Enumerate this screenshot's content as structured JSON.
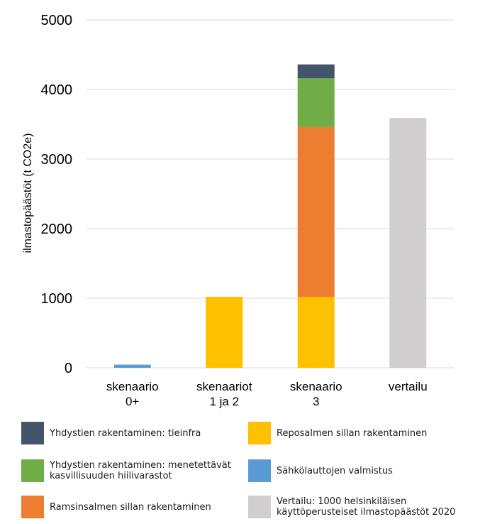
{
  "chart_data": {
    "type": "bar",
    "stacked": true,
    "title": "",
    "xlabel": "",
    "ylabel": "ilmastopäästöt (t CO2e)",
    "ylim": [
      0,
      5000
    ],
    "yticks": [
      0,
      1000,
      2000,
      3000,
      4000,
      5000
    ],
    "grid": true,
    "categories": [
      "skenaario\n0+",
      "skenaariot\n1 ja 2",
      "skenaario\n3",
      "vertailu"
    ],
    "series": [
      {
        "name": "Reposalmen sillan rakentaminen",
        "color": "#FFC000",
        "values": [
          0,
          1020,
          1020,
          0
        ]
      },
      {
        "name": "Sähkölauttojen valmistus",
        "color": "#5B9BD5",
        "values": [
          45,
          0,
          0,
          0
        ]
      },
      {
        "name": "Ramsinsalmen sillan rakentaminen",
        "color": "#ED7D31",
        "values": [
          0,
          0,
          2440,
          0
        ]
      },
      {
        "name": "Yhdystien rakentaminen: menetettävät kasvillisuuden hiilivarastot",
        "color": "#70AD47",
        "values": [
          0,
          0,
          700,
          0
        ]
      },
      {
        "name": "Yhdystien rakentaminen: tieinfra",
        "color": "#44546A",
        "values": [
          0,
          0,
          200,
          0
        ]
      },
      {
        "name": "Vertailu: 1000 helsinkiläisen käyttöperusteiset ilmastopäästöt 2020",
        "color": "#D0CECE",
        "values": [
          0,
          0,
          0,
          3590
        ]
      }
    ],
    "legend": {
      "placement": "bottom",
      "items": [
        {
          "label": "Yhdystien rakentaminen: tieinfra",
          "color": "#44546A"
        },
        {
          "label": "Reposalmen sillan rakentaminen",
          "color": "#FFC000"
        },
        {
          "label": "Yhdystien rakentaminen: menetettävät\nkasvillisuuden hiilivarastot",
          "color": "#70AD47"
        },
        {
          "label": "Sähkölauttojen valmistus",
          "color": "#5B9BD5"
        },
        {
          "label": "Ramsinsalmen sillan rakentaminen",
          "color": "#ED7D31"
        },
        {
          "label": "Vertailu: 1000 helsinkiläisen\nkäyttöperusteiset ilmastopäästöt 2020",
          "color": "#D0CECE"
        }
      ]
    }
  }
}
